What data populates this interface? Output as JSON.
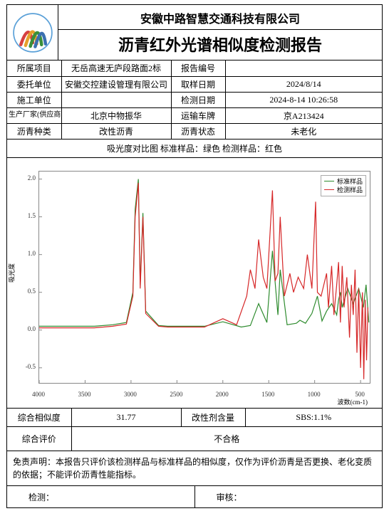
{
  "header": {
    "company": "安徽中路智慧交通科技有限公司",
    "report_title": "沥青红外光谱相似度检测报告"
  },
  "info": {
    "project_label": "所属项目",
    "project_value": "无岳高速无庐段路面2标",
    "report_no_label": "报告编号",
    "report_no_value": "",
    "client_label": "委托单位",
    "client_value": "安徽交控建设管理有限公司",
    "sample_date_label": "取样日期",
    "sample_date_value": "2024/8/14",
    "builder_label": "施工单位",
    "builder_value": "",
    "test_date_label": "检测日期",
    "test_date_value": "2024-8-14 10:26:58",
    "producer_label": "生产厂家(供应商)",
    "producer_value": "北京中物振华",
    "vehicle_label": "运输车牌",
    "vehicle_value": "京A213424",
    "asphalt_type_label": "沥青种类",
    "asphalt_type_value": "改性沥青",
    "asphalt_state_label": "沥青状态",
    "asphalt_state_value": "未老化"
  },
  "chart": {
    "caption": "吸光度对比图   标准样品：绿色   检测样品：红色",
    "type": "line",
    "x_label": "波数(cm-1)",
    "y_label": "吸光度",
    "xlim": [
      4000,
      400
    ],
    "ylim": [
      -0.7,
      2.1
    ],
    "xticks": [
      4000,
      3500,
      3000,
      2500,
      2000,
      1500,
      1000,
      500
    ],
    "yticks": [
      -0.5,
      0.0,
      0.5,
      1.0,
      1.5,
      2.0
    ],
    "legend": {
      "items": [
        {
          "label": "标准样品",
          "color": "#2e8b2e"
        },
        {
          "label": "检测样品",
          "color": "#d62728"
        }
      ]
    },
    "colors": {
      "standard": "#2e8b2e",
      "test": "#d62728",
      "axis": "#888888",
      "tick_color": "#333333",
      "background": "#ffffff"
    },
    "line_width": 1.2,
    "series": {
      "standard": [
        [
          4000,
          0.05
        ],
        [
          3800,
          0.05
        ],
        [
          3600,
          0.05
        ],
        [
          3400,
          0.05
        ],
        [
          3200,
          0.07
        ],
        [
          3050,
          0.1
        ],
        [
          2980,
          0.5
        ],
        [
          2955,
          1.6
        ],
        [
          2920,
          2.0
        ],
        [
          2900,
          0.6
        ],
        [
          2870,
          1.55
        ],
        [
          2840,
          0.25
        ],
        [
          2700,
          0.06
        ],
        [
          2600,
          0.05
        ],
        [
          2400,
          0.05
        ],
        [
          2200,
          0.05
        ],
        [
          2000,
          0.11
        ],
        [
          1800,
          0.04
        ],
        [
          1700,
          0.06
        ],
        [
          1610,
          0.35
        ],
        [
          1520,
          0.1
        ],
        [
          1460,
          1.05
        ],
        [
          1400,
          0.2
        ],
        [
          1375,
          0.8
        ],
        [
          1300,
          0.07
        ],
        [
          1200,
          0.09
        ],
        [
          1160,
          0.13
        ],
        [
          1100,
          0.09
        ],
        [
          1030,
          0.22
        ],
        [
          970,
          0.45
        ],
        [
          920,
          0.12
        ],
        [
          870,
          0.25
        ],
        [
          815,
          0.35
        ],
        [
          760,
          0.2
        ],
        [
          740,
          0.4
        ],
        [
          720,
          0.5
        ],
        [
          700,
          0.3
        ],
        [
          640,
          0.55
        ],
        [
          580,
          0.35
        ],
        [
          520,
          0.55
        ],
        [
          470,
          0.3
        ],
        [
          440,
          0.6
        ],
        [
          410,
          0.1
        ]
      ],
      "test": [
        [
          4000,
          0.03
        ],
        [
          3800,
          0.03
        ],
        [
          3600,
          0.03
        ],
        [
          3400,
          0.03
        ],
        [
          3200,
          0.05
        ],
        [
          3050,
          0.08
        ],
        [
          2980,
          0.45
        ],
        [
          2955,
          1.5
        ],
        [
          2920,
          1.95
        ],
        [
          2900,
          0.55
        ],
        [
          2870,
          1.5
        ],
        [
          2840,
          0.22
        ],
        [
          2700,
          0.05
        ],
        [
          2600,
          0.04
        ],
        [
          2400,
          0.04
        ],
        [
          2200,
          0.04
        ],
        [
          2000,
          0.15
        ],
        [
          1850,
          0.07
        ],
        [
          1740,
          0.45
        ],
        [
          1700,
          0.8
        ],
        [
          1650,
          0.55
        ],
        [
          1610,
          1.2
        ],
        [
          1560,
          0.7
        ],
        [
          1520,
          0.55
        ],
        [
          1460,
          1.85
        ],
        [
          1430,
          0.65
        ],
        [
          1400,
          0.75
        ],
        [
          1375,
          1.5
        ],
        [
          1330,
          0.45
        ],
        [
          1270,
          0.75
        ],
        [
          1230,
          0.5
        ],
        [
          1180,
          0.7
        ],
        [
          1120,
          0.55
        ],
        [
          1080,
          1.0
        ],
        [
          1030,
          0.55
        ],
        [
          990,
          1.7
        ],
        [
          970,
          0.5
        ],
        [
          930,
          0.45
        ],
        [
          890,
          0.65
        ],
        [
          870,
          0.75
        ],
        [
          850,
          0.3
        ],
        [
          815,
          0.85
        ],
        [
          790,
          0.2
        ],
        [
          760,
          0.6
        ],
        [
          740,
          0.9
        ],
        [
          720,
          0.1
        ],
        [
          700,
          0.85
        ],
        [
          680,
          0.3
        ],
        [
          650,
          0.7
        ],
        [
          620,
          -0.1
        ],
        [
          600,
          0.6
        ],
        [
          580,
          0.2
        ],
        [
          560,
          0.8
        ],
        [
          540,
          -0.3
        ],
        [
          520,
          0.55
        ],
        [
          500,
          -0.5
        ],
        [
          480,
          0.5
        ],
        [
          465,
          -0.65
        ],
        [
          450,
          0.4
        ],
        [
          435,
          -0.4
        ],
        [
          420,
          0.3
        ]
      ]
    }
  },
  "results": {
    "similarity_label": "综合相似度",
    "similarity_value": "31.77",
    "modifier_label": "改性剂含量",
    "modifier_value": "SBS:1.1%",
    "evaluation_label": "综合评价",
    "evaluation_value": "不合格"
  },
  "disclaimer": "免责声明：本报告只评价该检测样品与标准样品的相似度，仅作为评价沥青是否更换、老化变质的依据；不能评价沥青性能指标。",
  "sign": {
    "tester_label": "检测：",
    "reviewer_label": "审核："
  }
}
